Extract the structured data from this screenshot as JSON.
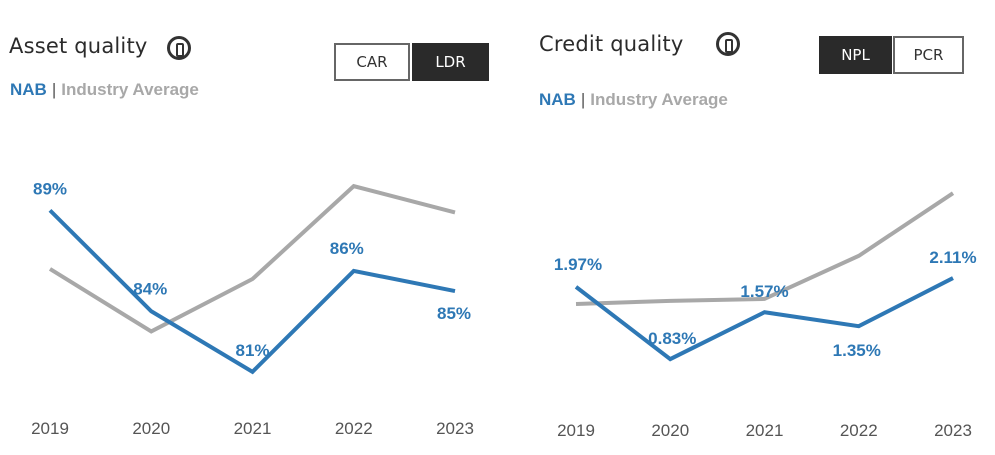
{
  "charts": [
    {
      "id": "asset",
      "title": "Asset quality",
      "buttons": [
        {
          "label": "CAR",
          "active": false
        },
        {
          "label": "LDR",
          "active": true
        }
      ],
      "legend": {
        "nab": "NAB",
        "separator": "|",
        "industry": "Industry Average"
      }
    },
    {
      "id": "credit",
      "title": "Credit quality",
      "buttons": [
        {
          "label": "NPL",
          "active": true
        },
        {
          "label": "PCR",
          "active": false
        }
      ],
      "legend": {
        "nab": "NAB",
        "separator": "|",
        "industry": "Industry Average"
      }
    }
  ],
  "colors": {
    "nab": "#2e78b5",
    "industry": "#a8a8a8",
    "active_button": "#2a2a2a"
  },
  "chart_data": [
    {
      "type": "line",
      "title": "Asset quality",
      "metric": "LDR",
      "categories": [
        "2019",
        "2020",
        "2021",
        "2022",
        "2023"
      ],
      "series": [
        {
          "name": "NAB",
          "values": [
            89,
            84,
            81,
            86,
            85
          ],
          "labels": [
            "89%",
            "84%",
            "81%",
            "86%",
            "85%"
          ]
        },
        {
          "name": "Industry Average",
          "values": [
            86.1,
            83.0,
            85.6,
            90.2,
            88.9
          ]
        }
      ],
      "ylim": [
        80,
        91
      ]
    },
    {
      "type": "line",
      "title": "Credit quality",
      "metric": "NPL",
      "categories": [
        "2019",
        "2020",
        "2021",
        "2022",
        "2023"
      ],
      "series": [
        {
          "name": "NAB",
          "values": [
            1.97,
            0.83,
            1.57,
            1.35,
            2.11
          ],
          "labels": [
            "1.97%",
            "0.83%",
            "1.57%",
            "1.35%",
            "2.11%"
          ]
        },
        {
          "name": "Industry Average",
          "values": [
            1.7,
            1.75,
            1.78,
            2.46,
            3.45
          ]
        }
      ],
      "ylim": [
        0.5,
        3.5
      ]
    }
  ]
}
